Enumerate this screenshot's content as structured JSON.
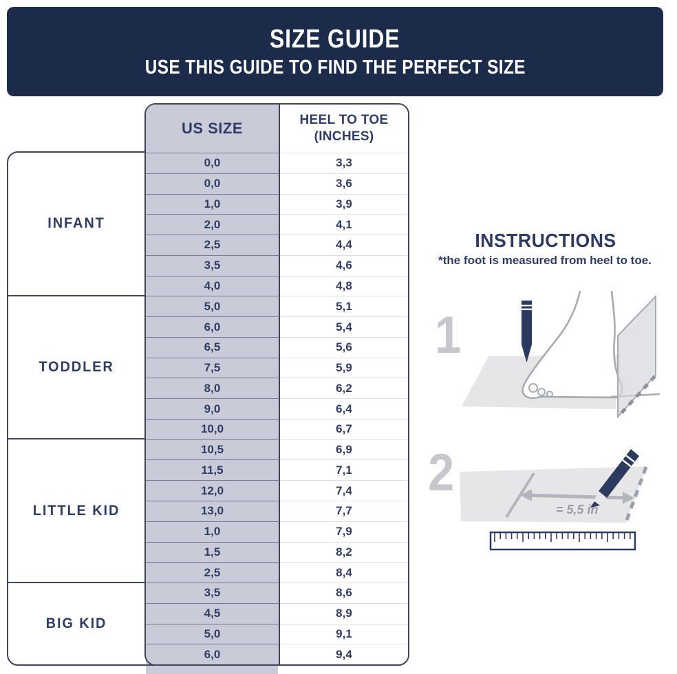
{
  "header": {
    "title": "SIZE GUIDE",
    "subtitle": "USE THIS GUIDE TO FIND THE PERFECT SIZE"
  },
  "chart_data": {
    "type": "table",
    "columns": [
      "US SIZE",
      "HEEL TO TOE (INCHES)"
    ],
    "column_header": {
      "col1": "US SIZE",
      "col2_line1": "HEEL TO TOE",
      "col2_line2": "(INCHES)"
    },
    "groups": [
      {
        "label": "INFANT",
        "rows": [
          [
            "0,0",
            "3,3"
          ],
          [
            "0,0",
            "3,6"
          ],
          [
            "1,0",
            "3,9"
          ],
          [
            "2,0",
            "4,1"
          ],
          [
            "2,5",
            "4,4"
          ],
          [
            "3,5",
            "4,6"
          ],
          [
            "4,0",
            "4,8"
          ]
        ]
      },
      {
        "label": "TODDLER",
        "rows": [
          [
            "5,0",
            "5,1"
          ],
          [
            "6,0",
            "5,4"
          ],
          [
            "6,5",
            "5,6"
          ],
          [
            "7,5",
            "5,9"
          ],
          [
            "8,0",
            "6,2"
          ],
          [
            "9,0",
            "6,4"
          ],
          [
            "10,0",
            "6,7"
          ]
        ]
      },
      {
        "label": "LITTLE KID",
        "rows": [
          [
            "10,5",
            "6,9"
          ],
          [
            "11,5",
            "7,1"
          ],
          [
            "12,0",
            "7,4"
          ],
          [
            "13,0",
            "7,7"
          ],
          [
            "1,0",
            "7,9"
          ],
          [
            "1,5",
            "8,2"
          ],
          [
            "2,5",
            "8,4"
          ]
        ]
      },
      {
        "label": "BIG KID",
        "rows": [
          [
            "3,5",
            "8,6"
          ],
          [
            "4,5",
            "8,9"
          ],
          [
            "5,0",
            "9,1"
          ],
          [
            "6,0",
            "9,4"
          ]
        ]
      }
    ]
  },
  "instructions": {
    "title": "INSTRUCTIONS",
    "note": "*the foot is measured from heel to toe.",
    "step1": {
      "number": "1"
    },
    "step2": {
      "number": "2",
      "measurement_label": "= 5,5 in"
    }
  },
  "colors": {
    "banner_bg": "#1d2b4a",
    "text_navy": "#303c63",
    "gray_column_bg": "#c9ccd8",
    "table_border": "#3f455a",
    "illustration_gray": "#a8aab2",
    "paper_gray": "#e6e6e9",
    "step_number_gray": "#c6c7cc",
    "pencil_navy": "#2b3a5e"
  }
}
